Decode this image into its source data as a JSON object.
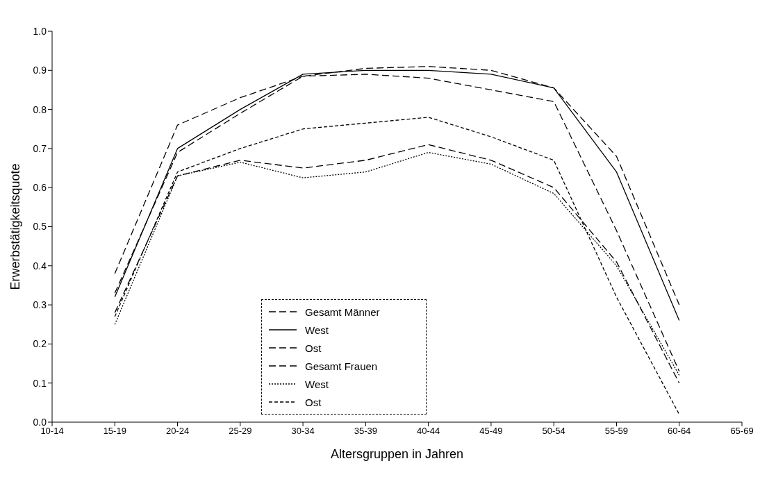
{
  "chart_data": {
    "type": "line",
    "xlabel": "Altersgruppen in Jahren",
    "ylabel": "Erwerbstätigkeitsquote",
    "categories": [
      "10-14",
      "15-19",
      "20-24",
      "25-29",
      "30-34",
      "35-39",
      "40-44",
      "45-49",
      "50-54",
      "55-59",
      "60-64",
      "65-69"
    ],
    "ylim": [
      0,
      1
    ],
    "yticks": [
      {
        "value": 0,
        "label": "0.0"
      },
      0.1,
      0.2,
      0.3,
      0.4,
      0.5,
      0.6,
      0.7,
      0.8,
      0.9,
      {
        "value": 1,
        "label": "1.0"
      }
    ],
    "grid": false,
    "legend": "bottom",
    "marker": "none",
    "legend_title": null,
    "series": [
      {
        "name": "Gesamt Männer",
        "color": "#000000",
        "line_style": "dashed",
        "values": [
          null,
          0.33,
          0.69,
          0.79,
          0.885,
          0.905,
          0.91,
          0.9,
          0.855,
          0.68,
          0.3,
          null
        ]
      },
      {
        "name": "West",
        "color": "#000000",
        "line_style": "solid",
        "values": [
          null,
          0.32,
          0.7,
          0.8,
          0.89,
          0.9,
          0.9,
          0.89,
          0.855,
          0.64,
          0.26,
          null
        ]
      },
      {
        "name": "Ost",
        "color": "#000000",
        "line_style": "dashed",
        "values": [
          null,
          0.38,
          0.76,
          0.83,
          0.885,
          0.89,
          0.88,
          0.85,
          0.82,
          0.49,
          0.13,
          null
        ]
      },
      {
        "name": "Gesamt Frauen",
        "color": "#000000",
        "line_style": "dashed",
        "values": [
          null,
          0.28,
          0.63,
          0.67,
          0.65,
          0.67,
          0.71,
          0.67,
          0.6,
          0.41,
          0.1,
          null
        ]
      },
      {
        "name": "West",
        "color": "#000000",
        "line_style": "dotted",
        "values": [
          null,
          0.25,
          0.63,
          0.665,
          0.625,
          0.64,
          0.69,
          0.66,
          0.585,
          0.4,
          0.12,
          null
        ]
      },
      {
        "name": "Ost",
        "color": "#000000",
        "line_style": "dashed",
        "values": [
          null,
          0.27,
          0.64,
          0.7,
          0.75,
          0.765,
          0.78,
          0.73,
          0.67,
          0.32,
          0.02,
          null
        ]
      }
    ]
  }
}
